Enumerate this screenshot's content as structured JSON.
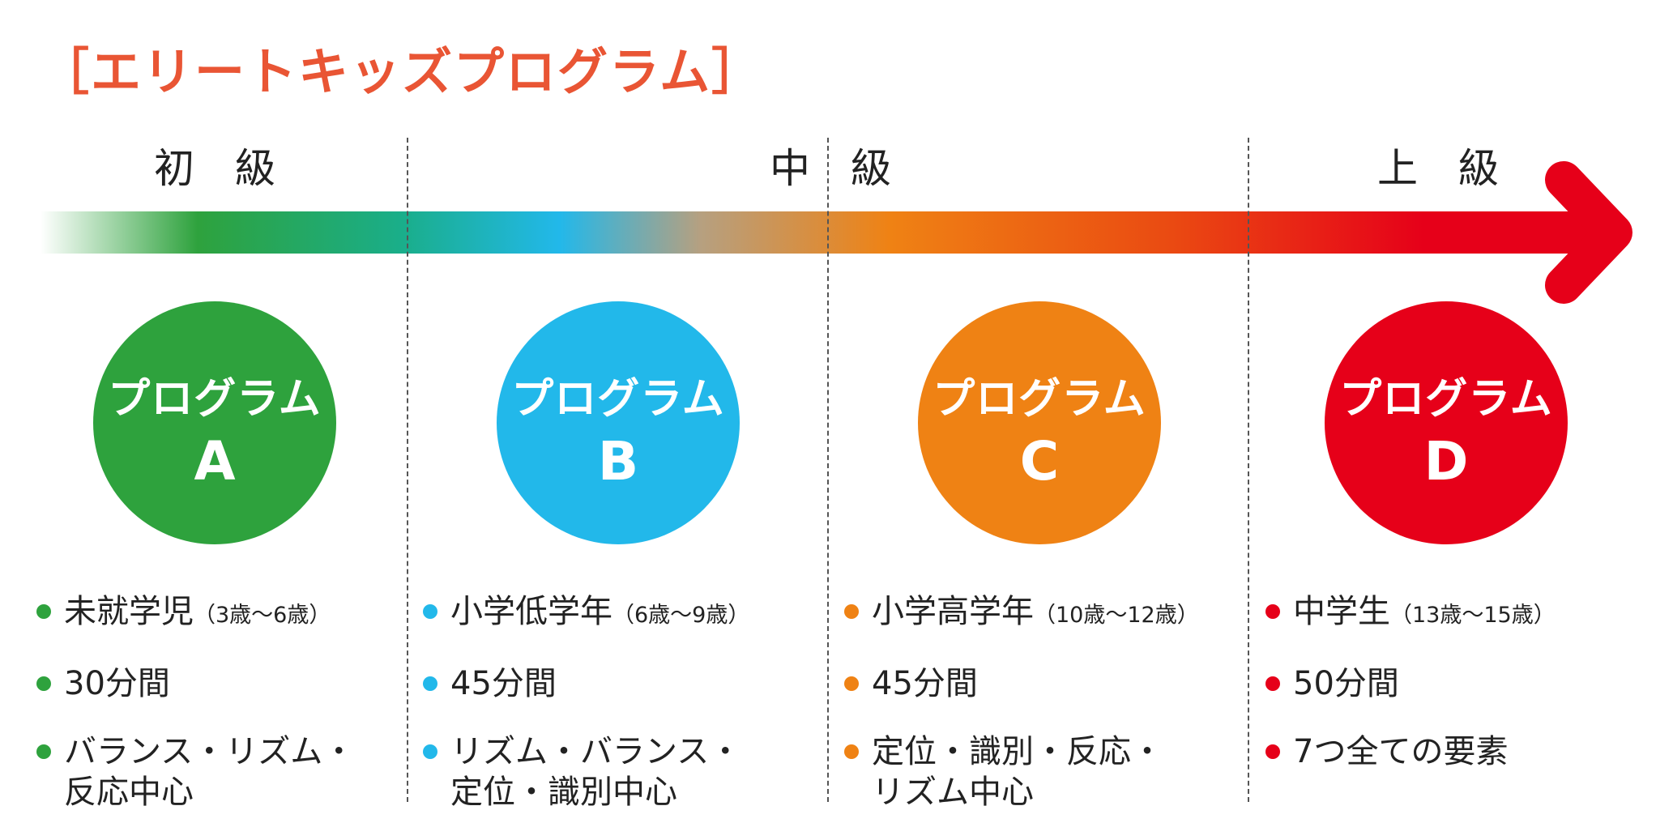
{
  "title": "［エリートキッズプログラム］",
  "levels": {
    "beginner": "初　級",
    "middle_left": "中",
    "middle_right": "級",
    "advanced": "上　級"
  },
  "colors": {
    "green": "#2ea23d",
    "blue": "#22b8ea",
    "orange": "#ef8214",
    "red": "#e60019",
    "title": "#e95534"
  },
  "programs": [
    {
      "name": "プログラム",
      "letter": "A",
      "color": "#2ea23d",
      "age_main": "未就学児",
      "age_range": "（3歳〜6歳）",
      "duration": "30分間",
      "focus_line1": "バランス・リズム・",
      "focus_line2": "反応中心"
    },
    {
      "name": "プログラム",
      "letter": "B",
      "color": "#22b8ea",
      "age_main": "小学低学年",
      "age_range": "（6歳〜9歳）",
      "duration": "45分間",
      "focus_line1": "リズム・バランス・",
      "focus_line2": "定位・識別中心"
    },
    {
      "name": "プログラム",
      "letter": "C",
      "color": "#ef8214",
      "age_main": "小学高学年",
      "age_range": "（10歳〜12歳）",
      "duration": "45分間",
      "focus_line1": "定位・識別・反応・",
      "focus_line2": "リズム中心"
    },
    {
      "name": "プログラム",
      "letter": "D",
      "color": "#e60019",
      "age_main": "中学生",
      "age_range": "（13歳〜15歳）",
      "duration": "50分間",
      "focus_line1": "7つ全ての要素",
      "focus_line2": ""
    }
  ]
}
